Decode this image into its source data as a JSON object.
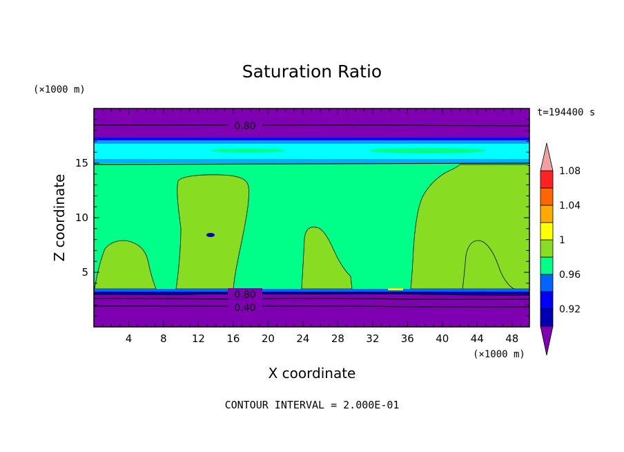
{
  "chart_data": {
    "type": "heatmap",
    "title": "Saturation Ratio",
    "xlabel": "X coordinate",
    "ylabel": "Z coordinate",
    "x_unit": "(×1000 m)",
    "y_unit": "(×1000 m)",
    "xlim": [
      0,
      50
    ],
    "ylim": [
      0,
      20
    ],
    "x_ticks": [
      "4",
      "8",
      "12",
      "16",
      "20",
      "24",
      "28",
      "32",
      "36",
      "40",
      "44",
      "48"
    ],
    "y_ticks": [
      "5",
      "10",
      "15"
    ],
    "time_label": "t=194400 s",
    "footer": "CONTOUR INTERVAL = 2.000E-01",
    "contour_labels": [
      "0.80",
      "0.80",
      "0.40"
    ],
    "colorbar": {
      "labels": [
        "1.08",
        "1.04",
        "1",
        "0.96",
        "0.92"
      ],
      "levels": [
        "<0.92",
        "0.92-0.94",
        "0.94-0.96",
        "0.96-0.98",
        "0.98-1.00",
        "1.00-1.02",
        "1.02-1.04",
        "1.04-1.06",
        "1.06-1.08",
        "1.08-1.10",
        ">1.10"
      ],
      "colors": [
        "#7f00b2",
        "#0000b2",
        "#0000ff",
        "#0066ff",
        "#00ff88",
        "#88dd22",
        "#ffff00",
        "#ffaa00",
        "#ff6600",
        "#ff2222",
        "#f0a0a0"
      ]
    },
    "layers": [
      {
        "z": [
          0,
          2.2
        ],
        "value": "<0.92"
      },
      {
        "z": [
          2.2,
          3.2
        ],
        "value": "<0.92"
      },
      {
        "z": [
          3.2,
          3.5
        ],
        "value": "0.98-1.00"
      },
      {
        "z": [
          3.5,
          15
        ],
        "value": "1.00-1.02 cloud columns over 0.98-1.00 background"
      },
      {
        "z": [
          15,
          17
        ],
        "value": "0.96-0.98"
      },
      {
        "z": [
          17,
          20
        ],
        "value": "<0.92"
      }
    ]
  }
}
